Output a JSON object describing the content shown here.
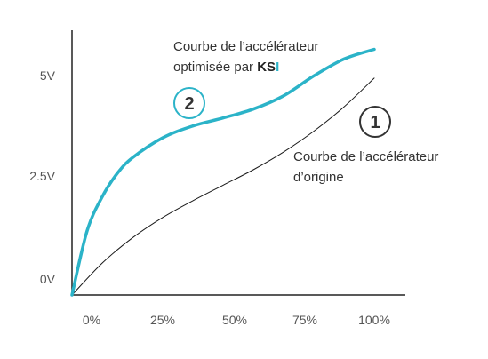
{
  "chart_data": {
    "type": "line",
    "x_ticks": [
      "0%",
      "25%",
      "50%",
      "75%",
      "100%"
    ],
    "y_ticks": [
      "0V",
      "2.5V",
      "5V"
    ],
    "xlim": [
      0,
      100
    ],
    "ylim": [
      0,
      5.7
    ],
    "grid": false,
    "series": [
      {
        "name": "Courbe de l’accélérateur d’origine",
        "color": "#1a1a1a",
        "x": [
          0,
          10,
          20,
          30,
          40,
          50,
          60,
          70,
          80,
          90,
          100
        ],
        "y": [
          0,
          0.72,
          1.29,
          1.75,
          2.13,
          2.48,
          2.83,
          3.23,
          3.7,
          4.25,
          4.9
        ]
      },
      {
        "name": "Courbe de l’accélérateur optimisée par KSI",
        "color": "#2bb3c8",
        "x": [
          0,
          5,
          10,
          15,
          20,
          30,
          40,
          50,
          60,
          70,
          80,
          90,
          100
        ],
        "y": [
          0,
          1.45,
          2.22,
          2.75,
          3.1,
          3.55,
          3.82,
          4.0,
          4.2,
          4.5,
          4.95,
          5.33,
          5.55
        ]
      }
    ],
    "annotations": {
      "optimized_line1": "Courbe de l’accélérateur",
      "optimized_line2_prefix": "optimisée par ",
      "optimized_brand_k": "KS",
      "optimized_brand_i": "I",
      "optimized_badge": "2",
      "original_line1": "Courbe de l’accélérateur",
      "original_line2": "d’origine",
      "original_badge": "1"
    }
  }
}
